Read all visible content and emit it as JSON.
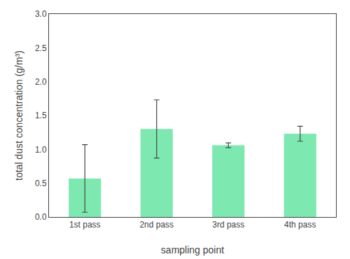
{
  "chart_data": {
    "type": "bar",
    "categories": [
      "1st pass",
      "2nd pass",
      "3rd pass",
      "4th pass"
    ],
    "values": [
      0.57,
      1.3,
      1.06,
      1.23
    ],
    "errors": [
      0.5,
      0.43,
      0.035,
      0.11
    ],
    "color": "#7de8b0",
    "xlabel": "sampling point",
    "ylabel": "total dust concentration (g/m³)",
    "ylim": [
      0.0,
      3.0
    ],
    "yticks": [
      {
        "value": 0.0,
        "label": "0.0"
      },
      0.5,
      {
        "value": 1.0,
        "label": "1.0"
      },
      1.5,
      {
        "value": 2.0,
        "label": "2.0"
      },
      2.5,
      {
        "value": 3.0,
        "label": "3.0"
      }
    ],
    "grid": false
  }
}
